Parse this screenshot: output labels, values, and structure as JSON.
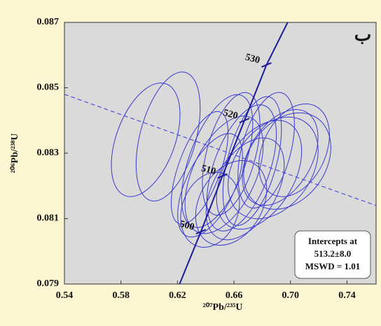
{
  "chart_data": {
    "type": "concordia",
    "x_label": "²⁰⁷Pb/²³⁵U",
    "y_label": "²⁰⁶Pb/²³⁸U",
    "panel_letter": "ب",
    "xlim": [
      0.54,
      0.7606
    ],
    "ylim": [
      0.079,
      0.087
    ],
    "xticks": [
      0.54,
      0.58,
      0.62,
      0.66,
      {
        "value": 0.7,
        "label": "0.70"
      },
      0.74
    ],
    "yticks": [
      0.079,
      0.081,
      0.083,
      0.085,
      0.087
    ],
    "ellipse_color": "#3a3acf",
    "concordia_color": "#1c1c96",
    "discordia_color": "#5050d8",
    "ellipses": {
      "x": [
        0.5975,
        0.6134,
        0.6357,
        0.6431,
        0.6481,
        0.653,
        0.658,
        0.6654,
        0.6679,
        0.6729,
        0.6778,
        0.6828,
        0.6877,
        0.6927,
        0.6977,
        0.658,
        0.6431,
        0.7026
      ],
      "y": [
        0.08341,
        0.08351,
        0.08255,
        0.08202,
        0.08276,
        0.08234,
        0.08298,
        0.08255,
        0.08191,
        0.08276,
        0.08234,
        0.08309,
        0.08255,
        0.08287,
        0.08276,
        0.08148,
        0.08127,
        0.08309
      ],
      "x_radius": [
        0.0208,
        0.0198,
        0.0149,
        0.0173,
        0.0198,
        0.0223,
        0.0173,
        0.0198,
        0.0223,
        0.0173,
        0.0248,
        0.0173,
        0.0273,
        0.0223,
        0.0273,
        0.0223,
        0.0198,
        0.0223
      ],
      "y_radius": [
        0.00182,
        0.00203,
        0.00182,
        0.00171,
        0.00214,
        0.00193,
        0.00193,
        0.00203,
        0.00171,
        0.00203,
        0.00182,
        0.00182,
        0.00171,
        0.0016,
        0.0016,
        0.00139,
        0.00118,
        0.0015
      ],
      "angle": [
        20,
        15,
        20,
        25,
        20,
        25,
        15,
        20,
        30,
        15,
        30,
        15,
        35,
        30,
        35,
        30,
        20,
        25
      ]
    },
    "concordia": {
      "x": [
        0.6215,
        0.6366,
        0.6518,
        0.6674,
        0.683,
        0.698
      ],
      "y": [
        0.079,
        0.0806,
        0.0823,
        0.084,
        0.0857,
        0.087
      ]
    },
    "age_ticks": {
      "labels": [
        500,
        510,
        520,
        530
      ],
      "x": [
        0.6366,
        0.6518,
        0.6674,
        0.683
      ],
      "y": [
        0.0806,
        0.0823,
        0.084,
        0.0857
      ]
    },
    "discordia": {
      "x": [
        0.54,
        0.7606
      ],
      "y": [
        0.0848,
        0.0814
      ]
    },
    "annotation": [
      "Intercepts at",
      "513.2±8.0",
      "MSWD = 1.01"
    ]
  }
}
